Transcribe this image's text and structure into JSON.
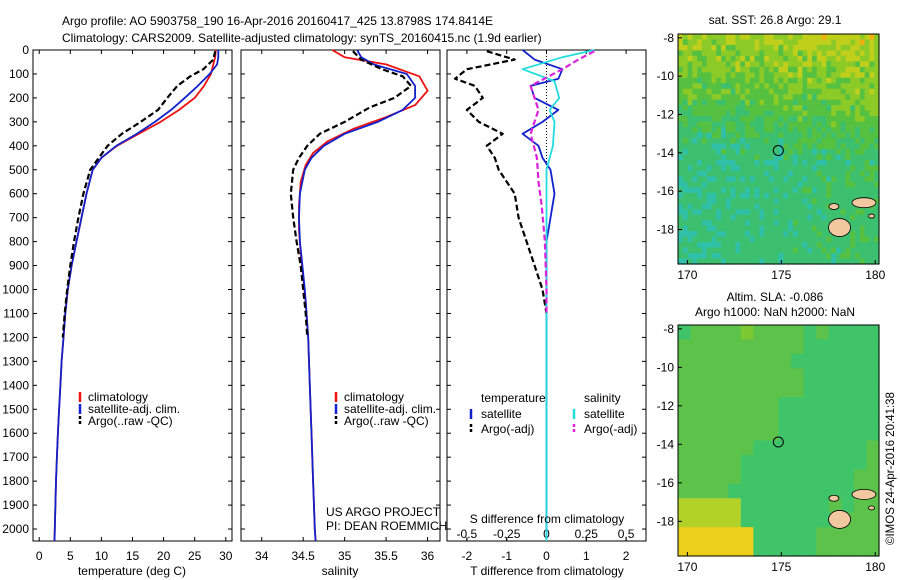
{
  "header": {
    "line1": "Argo profile: AO 5903758_190 16-Apr-2016 20160417_425 13.8798S 174.8414E",
    "line2": "Climatology: CARS2009. Satellite-adjusted climatology: synTS_20160415.nc (1.9d earlier)"
  },
  "project": {
    "line1": "US ARGO PROJECT",
    "line2": "PI: DEAN ROEMMICH"
  },
  "timestamp": "©IMOS 24-Apr-2016 20:41:38",
  "colors": {
    "climatology": "#ee1111",
    "satellite_t": "#1122cc",
    "argo": "#000000",
    "satellite_s": "#22dddd",
    "argo_s": "#dd22dd"
  },
  "chart_data": [
    {
      "id": "temperature",
      "type": "line",
      "xlabel": "temperature (deg C)",
      "xlim": [
        -1,
        31
      ],
      "ylim": [
        2050,
        0
      ],
      "xticks": [
        0,
        5,
        10,
        15,
        20,
        25,
        30
      ],
      "yticks": [
        0,
        100,
        200,
        300,
        400,
        500,
        600,
        700,
        800,
        900,
        1000,
        1100,
        1200,
        1300,
        1400,
        1500,
        1600,
        1700,
        1800,
        1900,
        2000
      ],
      "legend": [
        "climatology",
        "satellite-adj. clim.",
        "Argo(..raw -QC)"
      ],
      "series": [
        {
          "name": "climatology",
          "style": "solid",
          "color": "#ee1111",
          "points": [
            [
              28.4,
              0
            ],
            [
              28.3,
              30
            ],
            [
              28.0,
              60
            ],
            [
              27.6,
              100
            ],
            [
              26.5,
              150
            ],
            [
              25.0,
              200
            ],
            [
              22.5,
              250
            ],
            [
              19.5,
              300
            ],
            [
              16.0,
              350
            ],
            [
              12.5,
              400
            ],
            [
              10.0,
              450
            ],
            [
              8.6,
              500
            ],
            [
              7.6,
              600
            ],
            [
              6.8,
              700
            ],
            [
              6.0,
              800
            ],
            [
              5.2,
              900
            ],
            [
              4.6,
              1000
            ],
            [
              4.2,
              1100
            ],
            [
              3.9,
              1200
            ],
            [
              3.6,
              1300
            ],
            [
              3.4,
              1400
            ],
            [
              3.2,
              1500
            ],
            [
              3.0,
              1600
            ],
            [
              2.85,
              1700
            ],
            [
              2.7,
              1800
            ],
            [
              2.6,
              1900
            ],
            [
              2.5,
              2000
            ],
            [
              2.45,
              2050
            ]
          ]
        },
        {
          "name": "satellite-adj. clim.",
          "style": "solid",
          "color": "#1122cc",
          "points": [
            [
              28.8,
              0
            ],
            [
              28.8,
              30
            ],
            [
              28.6,
              60
            ],
            [
              27.4,
              100
            ],
            [
              25.5,
              150
            ],
            [
              23.4,
              200
            ],
            [
              21.2,
              250
            ],
            [
              18.6,
              300
            ],
            [
              15.7,
              350
            ],
            [
              12.4,
              400
            ],
            [
              10.0,
              450
            ],
            [
              8.6,
              500
            ],
            [
              7.6,
              600
            ],
            [
              6.8,
              700
            ],
            [
              6.0,
              800
            ],
            [
              5.2,
              900
            ],
            [
              4.6,
              1000
            ],
            [
              4.2,
              1100
            ],
            [
              3.9,
              1200
            ],
            [
              3.6,
              1300
            ],
            [
              3.4,
              1400
            ],
            [
              3.2,
              1500
            ],
            [
              3.0,
              1600
            ],
            [
              2.85,
              1700
            ],
            [
              2.7,
              1800
            ],
            [
              2.6,
              1900
            ],
            [
              2.5,
              2000
            ],
            [
              2.45,
              2050
            ]
          ]
        },
        {
          "name": "Argo(..raw -QC)",
          "style": "dashed",
          "color": "#000000",
          "points": [
            [
              28.3,
              5
            ],
            [
              28.0,
              40
            ],
            [
              26.4,
              80
            ],
            [
              24.3,
              110
            ],
            [
              22.2,
              150
            ],
            [
              20.6,
              200
            ],
            [
              19.1,
              250
            ],
            [
              16.3,
              300
            ],
            [
              13.3,
              350
            ],
            [
              11.0,
              400
            ],
            [
              9.6,
              450
            ],
            [
              8.2,
              500
            ],
            [
              7.1,
              600
            ],
            [
              6.3,
              700
            ],
            [
              5.6,
              800
            ],
            [
              5.0,
              900
            ],
            [
              4.5,
              1000
            ],
            [
              4.1,
              1100
            ],
            [
              3.8,
              1200
            ]
          ]
        }
      ]
    },
    {
      "id": "salinity",
      "type": "line",
      "xlabel": "salinity",
      "xlim": [
        33.75,
        36.15
      ],
      "ylim": [
        2050,
        0
      ],
      "xticks": [
        34,
        34.5,
        35,
        35.5,
        36
      ],
      "tick_labels": [
        "34",
        "34.5",
        "35",
        "35.5",
        "36"
      ],
      "legend": [
        "climatology",
        "satellite-adj. clim.",
        "Argo(..raw -QC)"
      ],
      "series": [
        {
          "name": "climatology",
          "style": "solid",
          "color": "#ee1111",
          "points": [
            [
              34.85,
              0
            ],
            [
              35.0,
              30
            ],
            [
              35.5,
              60
            ],
            [
              35.9,
              110
            ],
            [
              36.0,
              170
            ],
            [
              35.85,
              230
            ],
            [
              35.5,
              280
            ],
            [
              35.1,
              330
            ],
            [
              34.8,
              380
            ],
            [
              34.62,
              430
            ],
            [
              34.53,
              480
            ],
            [
              34.47,
              550
            ],
            [
              34.45,
              650
            ],
            [
              34.45,
              750
            ],
            [
              34.47,
              850
            ],
            [
              34.5,
              950
            ],
            [
              34.53,
              1050
            ],
            [
              34.56,
              1200
            ],
            [
              34.58,
              1400
            ],
            [
              34.6,
              1600
            ],
            [
              34.62,
              1800
            ],
            [
              34.64,
              2000
            ],
            [
              34.65,
              2050
            ]
          ]
        },
        {
          "name": "satellite-adj. clim.",
          "style": "solid",
          "color": "#1122cc",
          "points": [
            [
              35.15,
              0
            ],
            [
              35.2,
              30
            ],
            [
              35.35,
              60
            ],
            [
              35.75,
              100
            ],
            [
              35.85,
              150
            ],
            [
              35.85,
              200
            ],
            [
              35.7,
              250
            ],
            [
              35.4,
              300
            ],
            [
              35.0,
              350
            ],
            [
              34.75,
              400
            ],
            [
              34.6,
              450
            ],
            [
              34.52,
              500
            ],
            [
              34.46,
              600
            ],
            [
              34.45,
              700
            ],
            [
              34.46,
              800
            ],
            [
              34.49,
              900
            ],
            [
              34.52,
              1000
            ],
            [
              34.56,
              1200
            ],
            [
              34.58,
              1400
            ],
            [
              34.6,
              1600
            ],
            [
              34.62,
              1800
            ],
            [
              34.64,
              2000
            ],
            [
              34.65,
              2050
            ]
          ]
        },
        {
          "name": "Argo(..raw -QC)",
          "style": "dashed",
          "color": "#000000",
          "points": [
            [
              35.1,
              5
            ],
            [
              35.2,
              40
            ],
            [
              35.45,
              80
            ],
            [
              35.7,
              110
            ],
            [
              35.8,
              150
            ],
            [
              35.6,
              200
            ],
            [
              35.3,
              240
            ],
            [
              35.0,
              300
            ],
            [
              34.7,
              350
            ],
            [
              34.55,
              400
            ],
            [
              34.45,
              450
            ],
            [
              34.38,
              500
            ],
            [
              34.35,
              600
            ],
            [
              34.38,
              700
            ],
            [
              34.42,
              800
            ],
            [
              34.47,
              900
            ],
            [
              34.5,
              1000
            ],
            [
              34.53,
              1100
            ],
            [
              34.55,
              1200
            ]
          ]
        }
      ]
    },
    {
      "id": "difference",
      "type": "line",
      "xlabel": "T difference from climatology",
      "top_label": "S difference from climatology",
      "xlim": [
        -2.5,
        2.5
      ],
      "ylim": [
        2050,
        0
      ],
      "xticks": [
        -2,
        -1,
        0,
        1,
        2
      ],
      "s_ticks": [
        -0.5,
        -0.25,
        0,
        0.25,
        0.5
      ],
      "s_tick_labels": [
        "-0.5",
        "-0.25",
        "0",
        "0.25",
        "0.5"
      ],
      "legend_heads": [
        "temperature",
        "salinity"
      ],
      "legend": [
        "satellite",
        "Argo(-adj)",
        "satellite",
        "Argo(-adj)"
      ],
      "series": [
        {
          "name": "temperature satellite",
          "style": "solid",
          "color": "#1122cc",
          "units": "T",
          "points": [
            [
              -0.6,
              0
            ],
            [
              -0.3,
              40
            ],
            [
              0.4,
              80
            ],
            [
              0.3,
              120
            ],
            [
              -0.4,
              150
            ],
            [
              -0.3,
              200
            ],
            [
              0.3,
              250
            ],
            [
              -0.1,
              300
            ],
            [
              -0.6,
              350
            ],
            [
              -0.2,
              400
            ],
            [
              -0.1,
              450
            ],
            [
              0.1,
              500
            ],
            [
              0.2,
              600
            ],
            [
              0.1,
              700
            ],
            [
              0.0,
              800
            ],
            [
              0.0,
              1000
            ],
            [
              0.0,
              1500
            ],
            [
              0.0,
              2000
            ],
            [
              0.0,
              2050
            ]
          ]
        },
        {
          "name": "temperature Argo(-adj)",
          "style": "dashed",
          "color": "#000000",
          "units": "T",
          "points": [
            [
              -1.5,
              5
            ],
            [
              -0.8,
              40
            ],
            [
              -2.0,
              80
            ],
            [
              -2.3,
              120
            ],
            [
              -1.8,
              150
            ],
            [
              -1.6,
              200
            ],
            [
              -2.0,
              250
            ],
            [
              -1.7,
              300
            ],
            [
              -1.1,
              350
            ],
            [
              -1.5,
              400
            ],
            [
              -1.3,
              450
            ],
            [
              -1.2,
              500
            ],
            [
              -0.8,
              600
            ],
            [
              -0.7,
              700
            ],
            [
              -0.5,
              800
            ],
            [
              -0.3,
              900
            ],
            [
              -0.1,
              1000
            ],
            [
              0.0,
              1100
            ]
          ]
        },
        {
          "name": "salinity satellite",
          "style": "solid",
          "color": "#22dddd",
          "units": "S",
          "points": [
            [
              0.3,
              0
            ],
            [
              0.1,
              30
            ],
            [
              -0.15,
              80
            ],
            [
              0.05,
              130
            ],
            [
              0.08,
              200
            ],
            [
              0.02,
              250
            ],
            [
              0.05,
              300
            ],
            [
              0.04,
              400
            ],
            [
              0.0,
              500
            ],
            [
              0.0,
              700
            ],
            [
              0.0,
              1000
            ],
            [
              0.0,
              1500
            ],
            [
              0.0,
              2050
            ]
          ]
        },
        {
          "name": "salinity Argo(-adj)",
          "style": "dashed",
          "color": "#dd22dd",
          "units": "S",
          "points": [
            [
              0.3,
              5
            ],
            [
              0.2,
              40
            ],
            [
              0.1,
              80
            ],
            [
              -0.1,
              150
            ],
            [
              -0.05,
              250
            ],
            [
              -0.1,
              350
            ],
            [
              -0.06,
              450
            ],
            [
              -0.05,
              550
            ],
            [
              -0.03,
              650
            ],
            [
              -0.01,
              800
            ],
            [
              0.0,
              1000
            ],
            [
              0.0,
              1100
            ]
          ]
        }
      ]
    },
    {
      "id": "sst_map",
      "type": "heatmap",
      "title": "sat. SST: 26.8  Argo: 29.1",
      "xlim": [
        169.5,
        180.2
      ],
      "ylim": [
        -19.8,
        -7.8
      ],
      "xticks": [
        170,
        175,
        180
      ],
      "yticks": [
        -8,
        -10,
        -12,
        -14,
        -16,
        -18
      ],
      "marker": {
        "lon": 174.84,
        "lat": -13.88
      },
      "palette": [
        "#2bb0d8",
        "#30c0a8",
        "#3cc070",
        "#56c040",
        "#8cca28",
        "#bfcf1c",
        "#f0b010"
      ]
    },
    {
      "id": "sla_map",
      "type": "heatmap",
      "title_line1": "Altim. SLA: -0.086",
      "title_line2": "Argo h1000: NaN  h2000: NaN",
      "xlim": [
        169.5,
        180.2
      ],
      "ylim": [
        -19.8,
        -7.8
      ],
      "xticks": [
        170,
        175,
        180
      ],
      "yticks": [
        -8,
        -10,
        -12,
        -14,
        -16,
        -18
      ],
      "marker": {
        "lon": 174.84,
        "lat": -13.88
      },
      "palette": [
        "#33c28a",
        "#3fc46a",
        "#5cc24a",
        "#7cc832",
        "#b2d22a",
        "#eccf1a"
      ]
    }
  ]
}
